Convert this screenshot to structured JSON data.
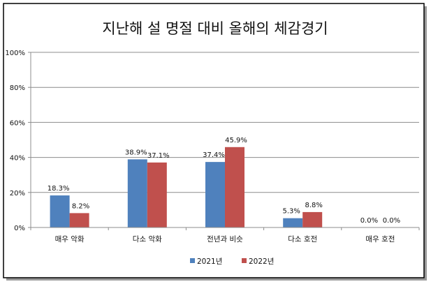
{
  "chart_data": {
    "type": "bar",
    "title": "지난해 설 명절 대비 올해의 체감경기",
    "categories": [
      "매우 악화",
      "다소 악화",
      "전년과 비슷",
      "다소 호전",
      "매우 호전"
    ],
    "series": [
      {
        "name": "2021년",
        "color": "#4f81bd",
        "values": [
          18.3,
          38.9,
          37.4,
          5.3,
          0.0
        ],
        "labels": [
          "18.3%",
          "38.9%",
          "37.4%",
          "5.3%",
          "0.0%"
        ]
      },
      {
        "name": "2022년",
        "color": "#c0504d",
        "values": [
          8.2,
          37.1,
          45.9,
          8.8,
          0.0
        ],
        "labels": [
          "8.2%",
          "37.1%",
          "45.9%",
          "8.8%",
          "0.0%"
        ]
      }
    ],
    "ylim": [
      0,
      100
    ],
    "yticks": [
      "0%",
      "20%",
      "40%",
      "60%",
      "80%",
      "100%"
    ],
    "grid": true,
    "legend": "bottom"
  }
}
